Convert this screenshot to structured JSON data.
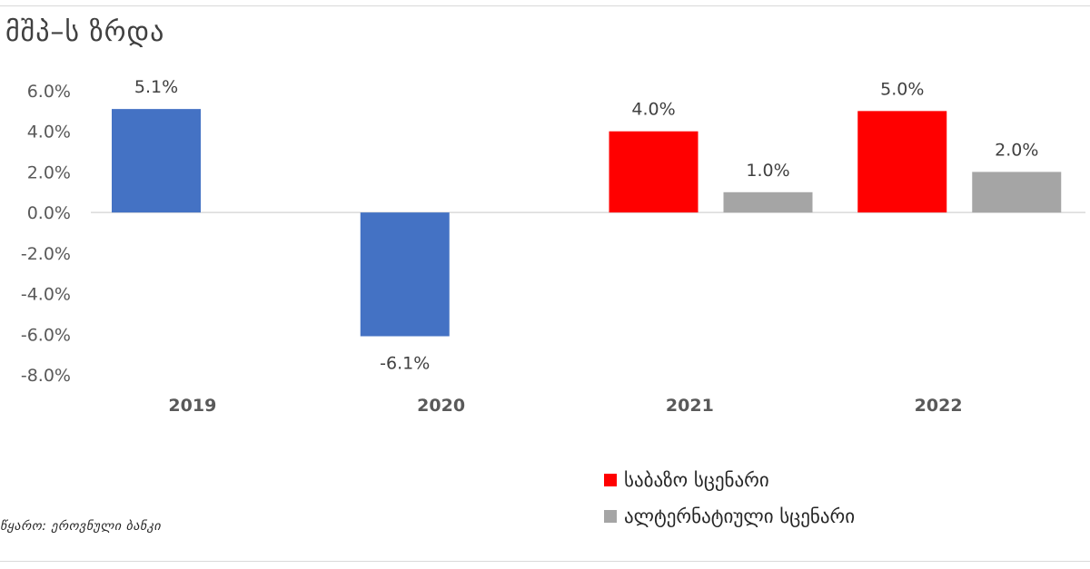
{
  "title": "მშპ–ს ზრდა",
  "source_note": "წყარო: ეროვნული ბანკი",
  "chart_data": {
    "type": "bar",
    "categories": [
      "2019",
      "2020",
      "2021",
      "2022"
    ],
    "series": [
      {
        "name": "საბაზო სცენარი",
        "color": "#ff0000",
        "values": [
          5.1,
          -6.1,
          4.0,
          5.0
        ],
        "labels": [
          "5.1%",
          "-6.1%",
          "4.0%",
          "5.0%"
        ],
        "colors": [
          "#4472c4",
          "#4472c4",
          "#ff0000",
          "#ff0000"
        ]
      },
      {
        "name": "ალტერნატიული სცენარი",
        "color": "#a5a5a5",
        "values": [
          null,
          null,
          1.0,
          2.0
        ],
        "labels": [
          "",
          "",
          "1.0%",
          "2.0%"
        ]
      }
    ],
    "y_ticks": [
      6.0,
      4.0,
      2.0,
      0.0,
      -2.0,
      -4.0,
      -6.0,
      -8.0
    ],
    "y_tick_labels": [
      "6.0%",
      "4.0%",
      "2.0%",
      "0.0%",
      "-2.0%",
      "-4.0%",
      "-6.0%",
      "-8.0%"
    ],
    "ylim": [
      -8.0,
      6.0
    ],
    "grid": false,
    "legend_position": "bottom-right"
  }
}
